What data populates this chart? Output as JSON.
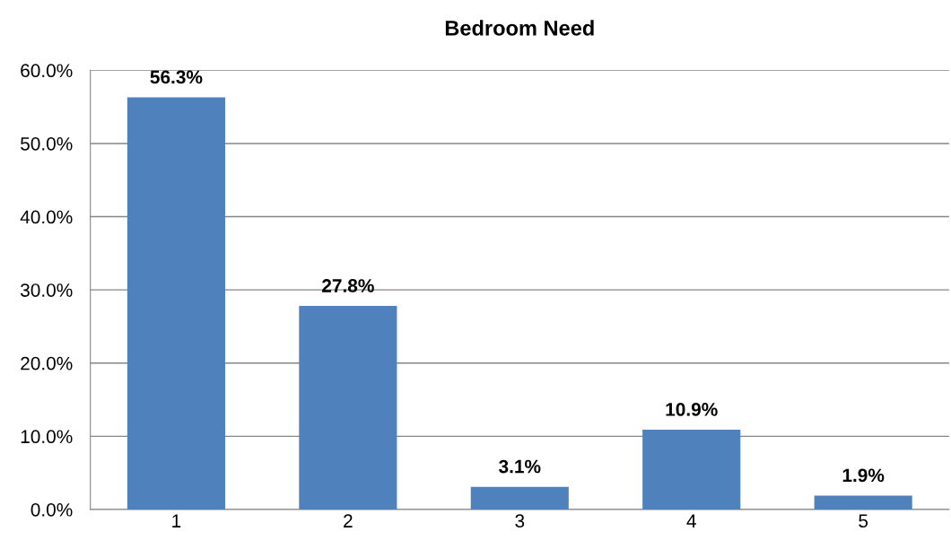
{
  "chart_data": {
    "type": "bar",
    "title": "Bedroom Need",
    "categories": [
      "1",
      "2",
      "3",
      "4",
      "5"
    ],
    "values": [
      56.3,
      27.8,
      3.1,
      10.9,
      1.9
    ],
    "value_labels": [
      "56.3%",
      "27.8%",
      "3.1%",
      "10.9%",
      "1.9%"
    ],
    "color": "#4f81bd",
    "ylim": [
      0,
      60
    ],
    "yticks": [
      {
        "value": 0,
        "label": "0.0%"
      },
      {
        "value": 10,
        "label": "10.0%"
      },
      {
        "value": 20,
        "label": "20.0%"
      },
      {
        "value": 30,
        "label": "30.0%"
      },
      {
        "value": 40,
        "label": "40.0%"
      },
      {
        "value": 50,
        "label": "50.0%"
      },
      {
        "value": 60,
        "label": "60.0%"
      }
    ],
    "grid": "y",
    "legend": false
  }
}
